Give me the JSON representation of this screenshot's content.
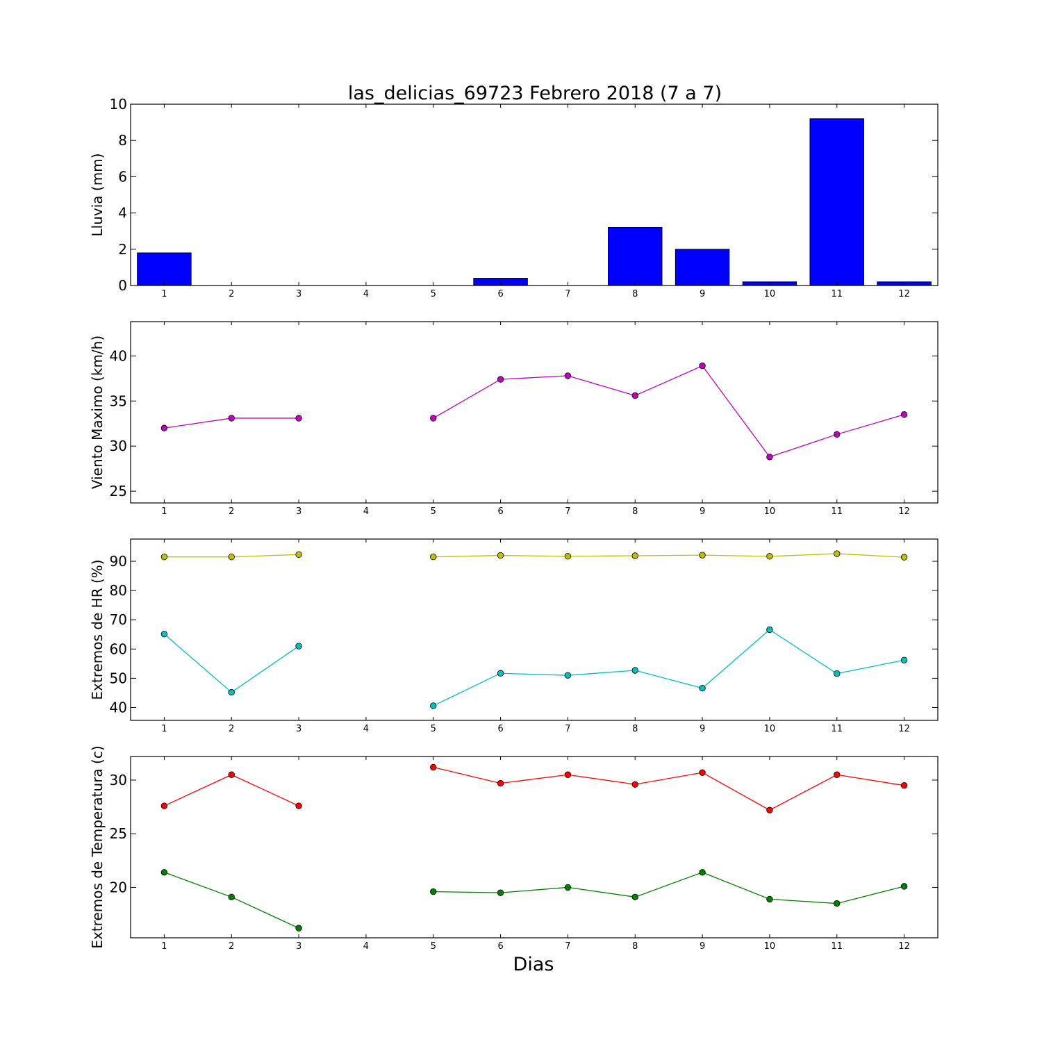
{
  "figure": {
    "title": "las_delicias_69723 Febrero 2018  (7 a 7)",
    "xlabel": "Dias"
  },
  "colors": {
    "rain": "#0000ff",
    "wind": "#bf00bf",
    "hr_max": "#bfbf00",
    "hr_min": "#00bfbf",
    "temp_max": "#ff0000",
    "temp_min": "#008000"
  },
  "chart_data": [
    {
      "type": "bar",
      "title": "las_delicias_69723 Febrero 2018  (7 a 7)",
      "ylabel": "Lluvia (mm)",
      "xlabel": "",
      "categories": [
        1,
        2,
        3,
        4,
        5,
        6,
        7,
        8,
        9,
        10,
        11,
        12
      ],
      "values": [
        1.8,
        0,
        0,
        null,
        0,
        0.4,
        0,
        3.2,
        2.0,
        0.2,
        9.2,
        0.2
      ],
      "ylim": [
        0,
        10
      ],
      "yticks": [
        0,
        2,
        4,
        6,
        8,
        10
      ],
      "grid": false
    },
    {
      "type": "line",
      "ylabel": "Viento Maximo (km/h)",
      "xlabel": "",
      "x": [
        1,
        2,
        3,
        4,
        5,
        6,
        7,
        8,
        9,
        10,
        11,
        12
      ],
      "series": [
        {
          "values": [
            32.0,
            33.1,
            33.1,
            null,
            33.1,
            37.4,
            37.8,
            35.6,
            38.9,
            28.8,
            31.3,
            33.5
          ]
        }
      ],
      "ylim": [
        23.7,
        43.8
      ],
      "yticks": [
        25,
        30,
        35,
        40
      ],
      "grid": false
    },
    {
      "type": "line",
      "ylabel": "Extremos de HR (%)",
      "xlabel": "",
      "x": [
        1,
        2,
        3,
        4,
        5,
        6,
        7,
        8,
        9,
        10,
        11,
        12
      ],
      "series": [
        {
          "values": [
            91.5,
            91.5,
            92.3,
            null,
            91.5,
            92.0,
            91.7,
            91.9,
            92.1,
            91.7,
            92.6,
            91.4
          ]
        },
        {
          "values": [
            65.1,
            45.2,
            61.0,
            null,
            40.6,
            51.7,
            51.0,
            52.7,
            46.6,
            66.6,
            51.6,
            56.2
          ]
        }
      ],
      "ylim": [
        35.6,
        97.6
      ],
      "yticks": [
        40,
        50,
        60,
        70,
        80,
        90
      ],
      "grid": false
    },
    {
      "type": "line",
      "ylabel": "Extremos de Temperatura (c)",
      "xlabel": "Dias",
      "x": [
        1,
        2,
        3,
        4,
        5,
        6,
        7,
        8,
        9,
        10,
        11,
        12
      ],
      "series": [
        {
          "values": [
            27.6,
            30.5,
            27.6,
            null,
            31.2,
            29.7,
            30.5,
            29.6,
            30.7,
            27.2,
            30.5,
            29.5
          ]
        },
        {
          "values": [
            21.4,
            19.1,
            16.2,
            null,
            19.6,
            19.5,
            20.0,
            19.1,
            21.4,
            18.9,
            18.5,
            20.1
          ]
        }
      ],
      "ylim": [
        15.3,
        32.2
      ],
      "yticks": [
        20,
        25,
        30
      ],
      "grid": false
    }
  ]
}
